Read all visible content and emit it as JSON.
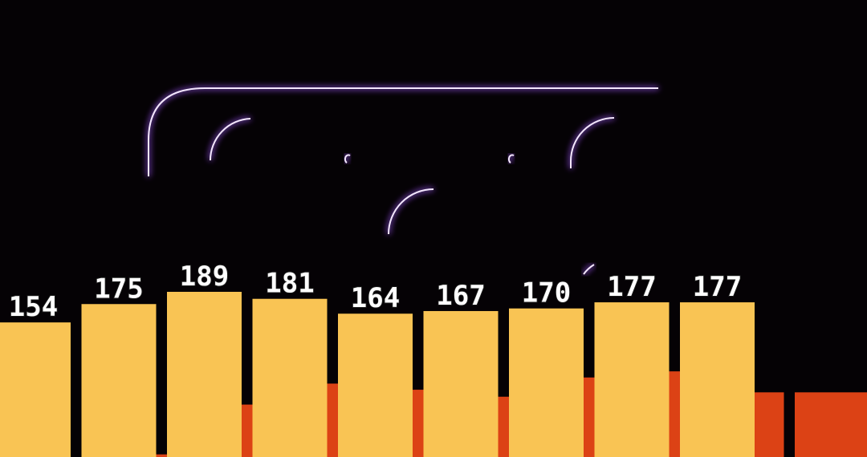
{
  "colors": {
    "background": "#050205",
    "front_series": "#f9c454",
    "back_series": "#dc4215",
    "rink_lines": "#f4e6ff",
    "rink_glow": "#a35cff"
  },
  "chart_data": {
    "type": "bar",
    "title": "",
    "xlabel": "",
    "ylabel": "",
    "ylim": [
      0,
      200
    ],
    "grid": false,
    "legend": "none",
    "series": [
      {
        "role": "front",
        "color": "#f9c454",
        "values": [
          154,
          175,
          189,
          181,
          164,
          167,
          170,
          177,
          177
        ],
        "data_labels": [
          "154",
          "175",
          "189",
          "181",
          "164",
          "167",
          "170",
          "177",
          "177"
        ]
      },
      {
        "role": "back",
        "color": "#dc4215",
        "values": [
          3,
          60,
          84,
          77,
          69,
          91,
          98,
          74,
          74
        ]
      }
    ]
  }
}
